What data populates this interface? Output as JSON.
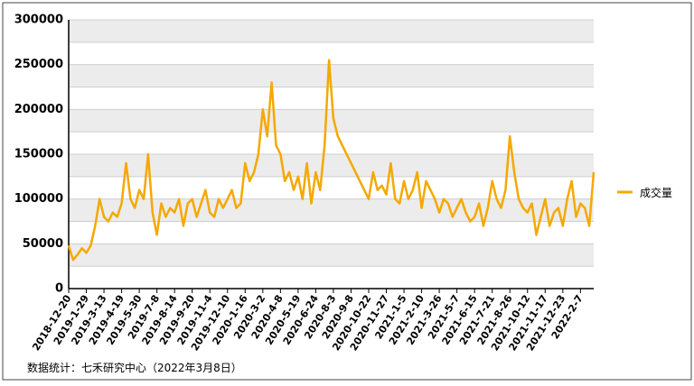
{
  "chart_data": {
    "type": "line",
    "categories": [
      "2018-12-20",
      null,
      null,
      null,
      "2019-1-29",
      null,
      null,
      null,
      "2019-3-13",
      null,
      null,
      null,
      "2019-4-19",
      null,
      null,
      null,
      "2019-5-30",
      null,
      null,
      null,
      "2019-7-8",
      null,
      null,
      null,
      "2019-8-14",
      null,
      null,
      null,
      "2019-9-20",
      null,
      null,
      null,
      "2019-11-4",
      null,
      null,
      null,
      "2019-12-10",
      null,
      null,
      null,
      "2020-1-16",
      null,
      null,
      null,
      "2020-3-2",
      null,
      null,
      null,
      "2020-4-8",
      null,
      null,
      null,
      "2020-5-19",
      null,
      null,
      null,
      "2020-6-24",
      null,
      null,
      null,
      "2020-8-3",
      null,
      null,
      null,
      "2020-9-8",
      null,
      null,
      null,
      "2020-10-22",
      null,
      null,
      null,
      "2020-11-27",
      null,
      null,
      null,
      "2021-1-5",
      null,
      null,
      null,
      "2021-2-10",
      null,
      null,
      null,
      "2021-3-26",
      null,
      null,
      null,
      "2021-5-7",
      null,
      null,
      null,
      "2021-6-15",
      null,
      null,
      null,
      "2021-7-21",
      null,
      null,
      null,
      "2021-8-26",
      null,
      null,
      null,
      "2021-10-12",
      null,
      null,
      null,
      "2021-11-17",
      null,
      null,
      null,
      "2021-12-23",
      null,
      null,
      null,
      "2022-2-7",
      null,
      null,
      null
    ],
    "series": [
      {
        "name": "成交量",
        "color": "#f5a800",
        "values": [
          48000,
          32000,
          38000,
          45000,
          40000,
          48000,
          70000,
          100000,
          80000,
          75000,
          85000,
          80000,
          95000,
          140000,
          100000,
          90000,
          110000,
          100000,
          150000,
          85000,
          60000,
          95000,
          80000,
          90000,
          85000,
          100000,
          70000,
          95000,
          100000,
          80000,
          95000,
          110000,
          85000,
          80000,
          100000,
          90000,
          100000,
          110000,
          90000,
          95000,
          140000,
          120000,
          130000,
          150000,
          200000,
          170000,
          230000,
          160000,
          150000,
          120000,
          130000,
          110000,
          125000,
          100000,
          140000,
          95000,
          130000,
          110000,
          160000,
          255000,
          190000,
          170000,
          160000,
          150000,
          140000,
          130000,
          120000,
          110000,
          100000,
          130000,
          110000,
          115000,
          105000,
          140000,
          100000,
          95000,
          120000,
          100000,
          110000,
          130000,
          90000,
          120000,
          110000,
          100000,
          85000,
          100000,
          95000,
          80000,
          90000,
          100000,
          85000,
          75000,
          80000,
          95000,
          70000,
          90000,
          120000,
          100000,
          90000,
          110000,
          170000,
          130000,
          100000,
          90000,
          85000,
          95000,
          60000,
          80000,
          100000,
          70000,
          85000,
          90000,
          70000,
          100000,
          120000,
          80000,
          95000,
          90000,
          70000,
          130000
        ]
      }
    ],
    "ylim": [
      0,
      300000
    ],
    "yticks": [
      0,
      50000,
      100000,
      150000,
      200000,
      250000,
      300000
    ],
    "grid": true,
    "legend": "right",
    "note": "数据统计：七禾研究中心（2022年3月8日）"
  }
}
